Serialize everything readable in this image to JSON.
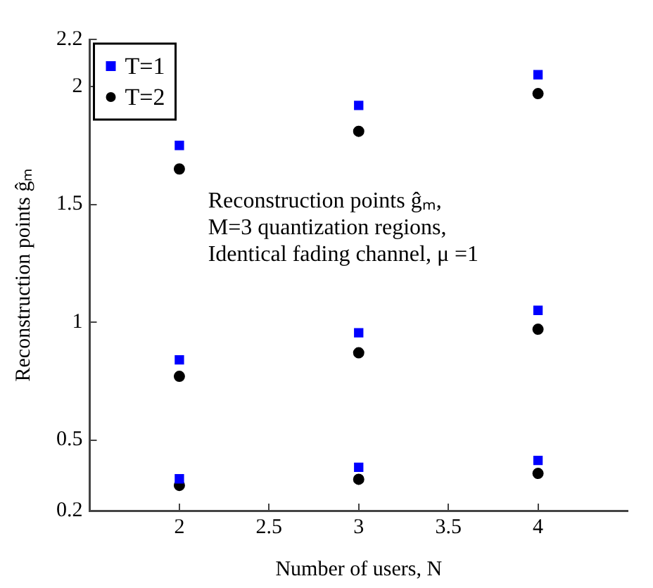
{
  "chart_data": {
    "type": "scatter",
    "xlabel": "Number of users, N",
    "ylabel": "Reconstruction points ĝₘ",
    "xlim": [
      1.5,
      4.5
    ],
    "xticks": [
      2,
      2.5,
      3,
      3.5,
      4
    ],
    "ylim": [
      0.2,
      2.2
    ],
    "yticks": [
      0.2,
      0.5,
      1,
      1.5,
      2,
      2.2
    ],
    "grid": false,
    "legend": "top left",
    "annotations": [
      "Reconstruction points ĝₘ,\nM=3 quantization regions,\nIdentical fading channel, μ =1"
    ],
    "series": [
      {
        "name": "T=1",
        "color": "#0000ff",
        "marker": "square",
        "x": [
          2,
          2,
          2,
          3,
          3,
          3,
          4,
          4,
          4
        ],
        "values": [
          0.335,
          0.84,
          1.75,
          0.384,
          0.955,
          1.92,
          0.413,
          1.05,
          2.05
        ]
      },
      {
        "name": "T=2",
        "color": "#000000",
        "marker": "circle",
        "x": [
          2,
          2,
          2,
          3,
          3,
          3,
          4,
          4,
          4
        ],
        "values": [
          0.307,
          0.77,
          1.65,
          0.333,
          0.87,
          1.81,
          0.358,
          0.97,
          1.97
        ]
      }
    ]
  }
}
